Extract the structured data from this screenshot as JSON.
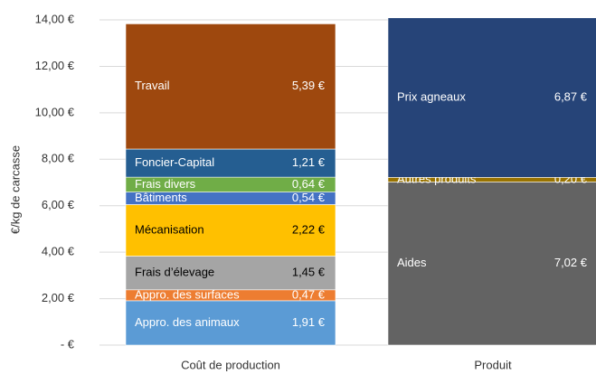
{
  "chart_data": {
    "type": "stacked_bar",
    "ylabel": "€/kg de carcasse",
    "categories": [
      "Coût de production",
      "Produit"
    ],
    "series": [
      {
        "name": "Appro. des animaux",
        "color": "#5b9bd5",
        "values": [
          1.91,
          null
        ],
        "value_labels": [
          "1,91 €",
          null
        ]
      },
      {
        "name": "Appro. des surfaces",
        "color": "#ed7d31",
        "values": [
          0.47,
          null
        ],
        "value_labels": [
          "0,47 €",
          null
        ]
      },
      {
        "name": "Frais d’élevage",
        "color": "#a5a5a5",
        "values": [
          1.45,
          null
        ],
        "value_labels": [
          "1,45 €",
          null
        ]
      },
      {
        "name": "Mécanisation",
        "color": "#ffc000",
        "values": [
          2.22,
          null
        ],
        "value_labels": [
          "2,22 €",
          null
        ]
      },
      {
        "name": "Bâtiments",
        "color": "#4472c4",
        "values": [
          0.54,
          null
        ],
        "value_labels": [
          "0,54 €",
          null
        ]
      },
      {
        "name": "Frais divers",
        "color": "#70ad47",
        "values": [
          0.64,
          null
        ],
        "value_labels": [
          "0,64 €",
          null
        ]
      },
      {
        "name": "Foncier-Capital",
        "color": "#255e91",
        "values": [
          1.21,
          null
        ],
        "value_labels": [
          "1,21 €",
          null
        ]
      },
      {
        "name": "Travail",
        "color": "#9e480e",
        "values": [
          5.39,
          null
        ],
        "value_labels": [
          "5,39 €",
          null
        ]
      },
      {
        "name": "Aides",
        "color": "#636363",
        "values": [
          null,
          7.02
        ],
        "value_labels": [
          null,
          "7,02 €"
        ]
      },
      {
        "name": "Autres produits",
        "color": "#997300",
        "values": [
          null,
          0.2
        ],
        "value_labels": [
          null,
          "0,20 €"
        ]
      },
      {
        "name": "Prix agneaux",
        "color": "#264478",
        "values": [
          null,
          6.87
        ],
        "value_labels": [
          null,
          "6,87 €"
        ]
      }
    ],
    "ylim": [
      0,
      14.2
    ],
    "yticks": [
      {
        "value": 0,
        "label": "-  €"
      },
      {
        "value": 2,
        "label": "2,00 €"
      },
      {
        "value": 4,
        "label": "4,00 €"
      },
      {
        "value": 6,
        "label": "6,00 €"
      },
      {
        "value": 8,
        "label": "8,00 €"
      },
      {
        "value": 10,
        "label": "10,00 €"
      },
      {
        "value": 12,
        "label": "12,00 €"
      },
      {
        "value": 14,
        "label": "14,00 €"
      }
    ],
    "grid": true
  }
}
